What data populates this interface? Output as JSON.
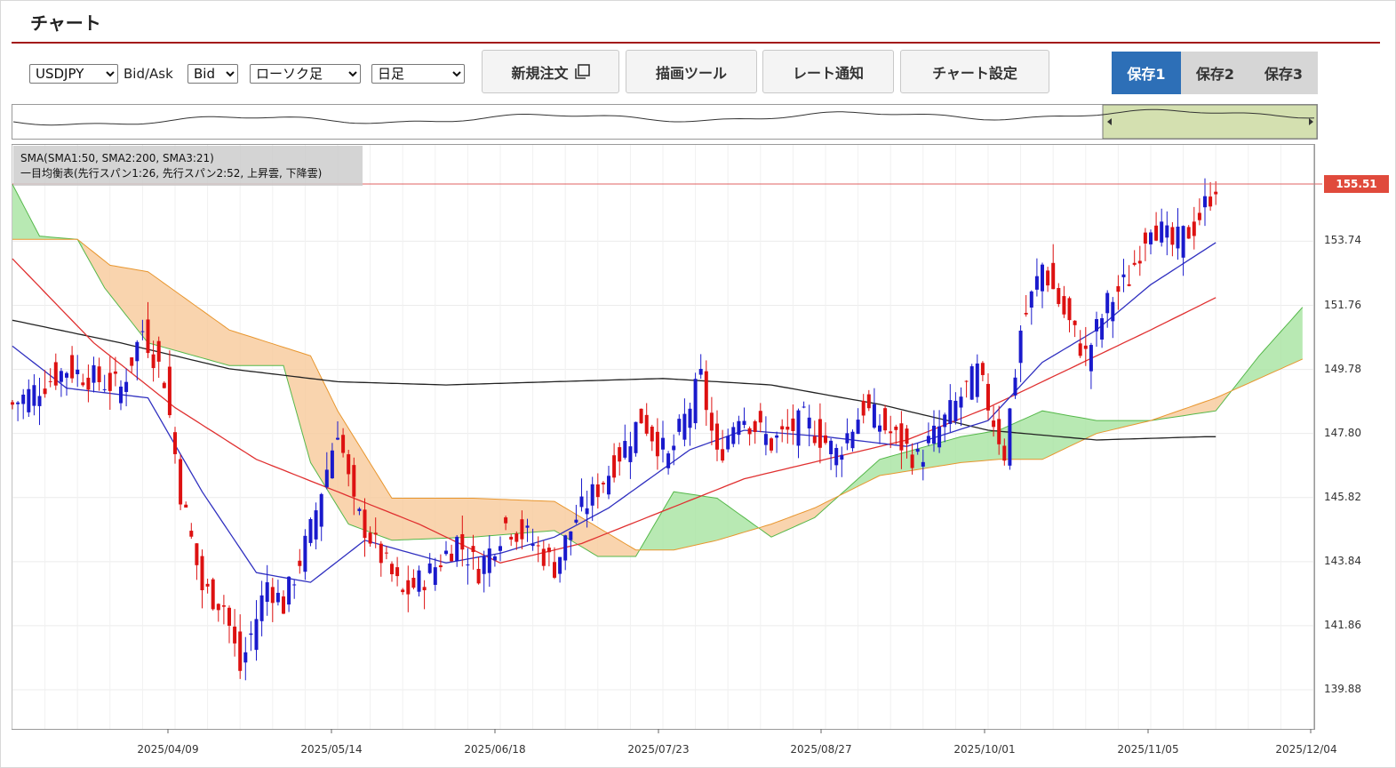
{
  "page": {
    "title": "チャート"
  },
  "toolbar": {
    "symbol": "USDJPY",
    "bid_ask_label": "Bid/Ask",
    "bid_ask_value": "Bid",
    "chart_type": "ローソク足",
    "timeframe": "日足",
    "new_order_label": "新規注文",
    "drawing_tools_label": "描画ツール",
    "rate_alert_label": "レート通知",
    "chart_settings_label": "チャート設定",
    "save_tabs": [
      "保存1",
      "保存2",
      "保存3"
    ],
    "active_save_tab": 0
  },
  "indicators": {
    "sma_line": "SMA(SMA1:50, SMA2:200, SMA3:21)",
    "ichimoku_line": "一目均衡表(先行スパン1:26, 先行スパン2:52, 上昇雲, 下降雲)"
  },
  "colors": {
    "accent_rule": "#a31a1a",
    "tab_active": "#2d6fb7",
    "candle_up": "#1a1acc",
    "candle_down": "#dd1111",
    "sma50": "#e03030",
    "sma200": "#222222",
    "sma21": "#3030c0",
    "cloud_up": "#a6e3a0",
    "cloud_down": "#f7c99a",
    "price_tag": "#e04a3c"
  },
  "chart_data": {
    "type": "candlestick",
    "current_price_label": "155.51",
    "y_ticks": [
      "155.51",
      "153.74",
      "151.76",
      "149.78",
      "147.80",
      "145.82",
      "143.84",
      "141.86",
      "139.88"
    ],
    "x_ticks": [
      "2025/04/09",
      "2025/05/14",
      "2025/06/18",
      "2025/07/23",
      "2025/08/27",
      "2025/10/01",
      "2025/11/05",
      "2025/12/04"
    ],
    "ylim": [
      139.3,
      156.6
    ],
    "current_price": 155.51,
    "close_keypoints": [
      [
        0,
        148.7
      ],
      [
        10,
        149.8
      ],
      [
        20,
        149.2
      ],
      [
        24,
        151.0
      ],
      [
        28,
        149.5
      ],
      [
        31,
        146.0
      ],
      [
        35,
        143.0
      ],
      [
        39,
        142.5
      ],
      [
        42,
        140.5
      ],
      [
        47,
        143.2
      ],
      [
        50,
        142.5
      ],
      [
        55,
        144.8
      ],
      [
        60,
        148.0
      ],
      [
        63,
        145.5
      ],
      [
        68,
        144.0
      ],
      [
        72,
        142.8
      ],
      [
        77,
        143.5
      ],
      [
        82,
        144.5
      ],
      [
        86,
        143.6
      ],
      [
        91,
        145.0
      ],
      [
        95,
        144.6
      ],
      [
        100,
        143.7
      ],
      [
        104,
        145.2
      ],
      [
        110,
        146.6
      ],
      [
        116,
        148.3
      ],
      [
        121,
        147.0
      ],
      [
        127,
        149.5
      ],
      [
        130,
        147.0
      ],
      [
        134,
        148.5
      ],
      [
        140,
        147.5
      ],
      [
        146,
        148.2
      ],
      [
        152,
        147.2
      ],
      [
        157,
        148.6
      ],
      [
        162,
        147.8
      ],
      [
        167,
        147.0
      ],
      [
        172,
        148.2
      ],
      [
        178,
        149.7
      ],
      [
        183,
        147.2
      ],
      [
        186,
        151.0
      ],
      [
        190,
        153.0
      ],
      [
        194,
        151.5
      ],
      [
        198,
        150.2
      ],
      [
        202,
        151.8
      ],
      [
        206,
        152.6
      ],
      [
        210,
        154.4
      ],
      [
        214,
        153.6
      ],
      [
        218,
        154.2
      ],
      [
        222,
        155.51
      ]
    ],
    "sma200_keypoints": [
      [
        0,
        151.3
      ],
      [
        20,
        150.6
      ],
      [
        40,
        149.8
      ],
      [
        60,
        149.4
      ],
      [
        80,
        149.3
      ],
      [
        100,
        149.4
      ],
      [
        120,
        149.5
      ],
      [
        140,
        149.3
      ],
      [
        160,
        148.7
      ],
      [
        180,
        147.9
      ],
      [
        200,
        147.6
      ],
      [
        220,
        147.7
      ]
    ],
    "sma50_keypoints": [
      [
        0,
        153.2
      ],
      [
        15,
        150.6
      ],
      [
        30,
        148.6
      ],
      [
        45,
        147.0
      ],
      [
        60,
        146.0
      ],
      [
        75,
        145.0
      ],
      [
        90,
        143.8
      ],
      [
        105,
        144.4
      ],
      [
        120,
        145.4
      ],
      [
        135,
        146.4
      ],
      [
        150,
        147.0
      ],
      [
        165,
        147.6
      ],
      [
        180,
        148.6
      ],
      [
        195,
        149.8
      ],
      [
        210,
        151.0
      ],
      [
        222,
        152.0
      ]
    ],
    "sma21_keypoints": [
      [
        0,
        150.5
      ],
      [
        10,
        149.2
      ],
      [
        20,
        149.0
      ],
      [
        25,
        148.9
      ],
      [
        35,
        146.0
      ],
      [
        45,
        143.5
      ],
      [
        55,
        143.2
      ],
      [
        65,
        144.5
      ],
      [
        80,
        143.8
      ],
      [
        90,
        144.1
      ],
      [
        100,
        144.6
      ],
      [
        110,
        145.5
      ],
      [
        125,
        147.3
      ],
      [
        135,
        147.9
      ],
      [
        150,
        147.7
      ],
      [
        165,
        147.4
      ],
      [
        180,
        148.2
      ],
      [
        190,
        150.0
      ],
      [
        200,
        151.0
      ],
      [
        210,
        152.4
      ],
      [
        222,
        153.7
      ]
    ],
    "span_a_keypoints": [
      [
        0,
        155.5
      ],
      [
        5,
        153.9
      ],
      [
        12,
        153.8
      ],
      [
        17,
        152.3
      ],
      [
        25,
        150.6
      ],
      [
        40,
        149.9
      ],
      [
        50,
        149.9
      ],
      [
        55,
        146.9
      ],
      [
        62,
        145.0
      ],
      [
        70,
        144.5
      ],
      [
        85,
        144.6
      ],
      [
        100,
        144.8
      ],
      [
        108,
        144.0
      ],
      [
        115,
        144.0
      ],
      [
        122,
        146.0
      ],
      [
        130,
        145.8
      ],
      [
        140,
        144.6
      ],
      [
        148,
        145.2
      ],
      [
        160,
        147.0
      ],
      [
        175,
        147.7
      ],
      [
        182,
        147.9
      ],
      [
        190,
        148.5
      ],
      [
        200,
        148.2
      ],
      [
        210,
        148.2
      ],
      [
        222,
        148.5
      ],
      [
        230,
        150.2
      ],
      [
        238,
        151.7
      ]
    ],
    "span_b_keypoints": [
      [
        0,
        153.8
      ],
      [
        12,
        153.8
      ],
      [
        18,
        153.0
      ],
      [
        25,
        152.8
      ],
      [
        40,
        151.0
      ],
      [
        55,
        150.2
      ],
      [
        60,
        148.5
      ],
      [
        70,
        145.8
      ],
      [
        85,
        145.8
      ],
      [
        100,
        145.7
      ],
      [
        108,
        144.9
      ],
      [
        115,
        144.2
      ],
      [
        122,
        144.2
      ],
      [
        130,
        144.5
      ],
      [
        140,
        145.0
      ],
      [
        148,
        145.5
      ],
      [
        160,
        146.5
      ],
      [
        175,
        146.9
      ],
      [
        182,
        147.0
      ],
      [
        190,
        147.0
      ],
      [
        200,
        147.8
      ],
      [
        210,
        148.2
      ],
      [
        222,
        148.9
      ],
      [
        230,
        149.5
      ],
      [
        238,
        150.1
      ]
    ]
  }
}
